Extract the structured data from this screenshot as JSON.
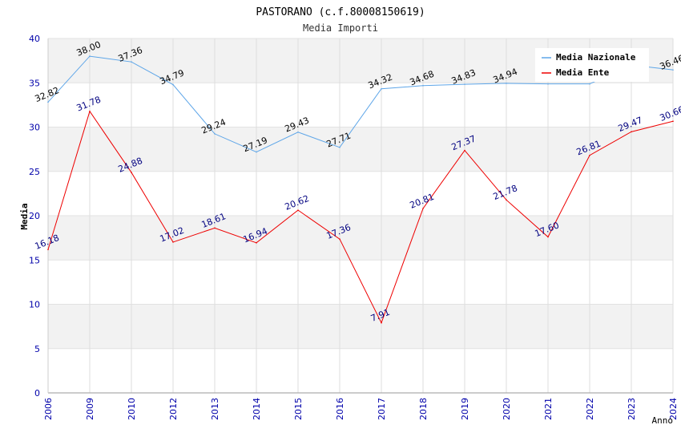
{
  "chart_data": {
    "type": "line",
    "title": "PASTORANO (c.f.80008150619)",
    "subtitle": "Media Importi",
    "xlabel": "Anno",
    "ylabel": "Media",
    "ylim": [
      0,
      40
    ],
    "yticks": [
      "0",
      "5",
      "10",
      "15",
      "20",
      "25",
      "30",
      "35",
      "40"
    ],
    "categories": [
      "2006",
      "2009",
      "2010",
      "2012",
      "2013",
      "2014",
      "2015",
      "2016",
      "2017",
      "2018",
      "2019",
      "2020",
      "2021",
      "2022",
      "2023",
      "2024"
    ],
    "series": [
      {
        "name": "Media Nazionale",
        "color": "#5da5e8",
        "label_color": "#000000",
        "values": [
          32.82,
          38.0,
          37.36,
          34.79,
          29.24,
          27.19,
          29.43,
          27.71,
          34.32,
          34.68,
          34.83,
          34.94,
          34.87,
          34.87,
          37.0,
          36.46
        ],
        "labels": [
          "32.82",
          "38.00",
          "37.36",
          "34.79",
          "29.24",
          "27.19",
          "29.43",
          "27.71",
          "34.32",
          "34.68",
          "34.83",
          "34.94",
          "",
          "",
          "",
          "36.46"
        ]
      },
      {
        "name": "Media Ente",
        "color": "#ee0000",
        "label_color": "#000080",
        "values": [
          16.18,
          31.78,
          24.88,
          17.02,
          18.61,
          16.94,
          20.62,
          17.36,
          7.91,
          20.81,
          27.37,
          21.78,
          17.6,
          26.81,
          29.47,
          30.66
        ],
        "labels": [
          "16.18",
          "31.78",
          "24.88",
          "17.02",
          "18.61",
          "16.94",
          "20.62",
          "17.36",
          "7.91",
          "20.81",
          "27.37",
          "21.78",
          "17.60",
          "26.81",
          "29.47",
          "30.66"
        ]
      }
    ],
    "legend": [
      "Media Nazionale",
      "Media Ente"
    ],
    "legend_position": "top-right",
    "grid": true
  }
}
